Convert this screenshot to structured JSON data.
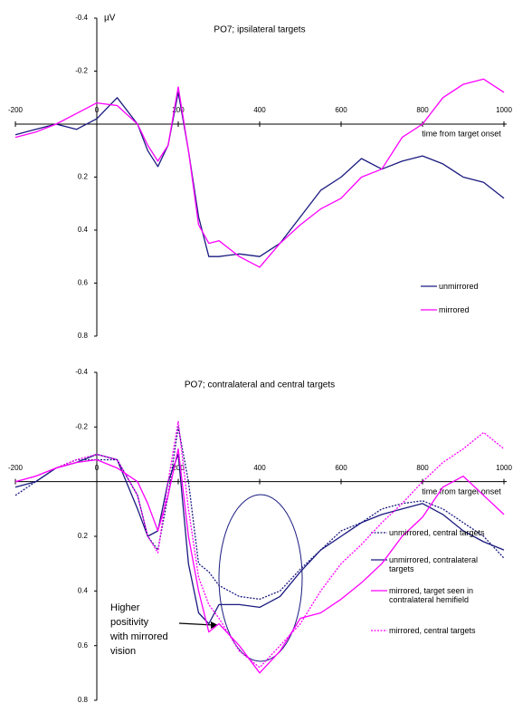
{
  "chart_data": [
    {
      "type": "line",
      "title": "PO7; ipsilateral targets",
      "y_unit": "µV",
      "x_label": "time from target onset",
      "x": [
        -200,
        -150,
        -100,
        -50,
        0,
        50,
        100,
        125,
        150,
        175,
        200,
        225,
        250,
        275,
        300,
        350,
        400,
        450,
        500,
        550,
        600,
        650,
        700,
        750,
        800,
        850,
        900,
        950,
        1000
      ],
      "series": [
        {
          "name": "unmirrored",
          "color": "#1a1a80",
          "dashed": false,
          "values": [
            0.04,
            0.02,
            0.0,
            0.02,
            -0.02,
            -0.1,
            0.0,
            0.1,
            0.16,
            0.08,
            -0.12,
            0.1,
            0.35,
            0.5,
            0.5,
            0.49,
            0.5,
            0.45,
            0.35,
            0.25,
            0.2,
            0.13,
            0.17,
            0.14,
            0.12,
            0.15,
            0.2,
            0.22,
            0.28
          ]
        },
        {
          "name": "mirrored",
          "color": "#ff00ff",
          "dashed": false,
          "values": [
            0.05,
            0.03,
            0.0,
            -0.04,
            -0.08,
            -0.07,
            0.0,
            0.08,
            0.14,
            0.08,
            -0.14,
            0.1,
            0.38,
            0.45,
            0.44,
            0.5,
            0.54,
            0.45,
            0.38,
            0.32,
            0.28,
            0.2,
            0.17,
            0.05,
            0.0,
            -0.1,
            -0.15,
            -0.17,
            -0.12
          ]
        }
      ],
      "xlim": [
        -200,
        1000
      ],
      "xticks": [
        -200,
        0,
        200,
        400,
        600,
        800,
        1000
      ],
      "ylim": [
        -0.4,
        0.8
      ],
      "yticks": [
        -0.4,
        -0.2,
        0.2,
        0.4,
        0.6,
        0.8
      ],
      "y_inverted": true
    },
    {
      "type": "line",
      "title": "PO7; contralateral and central targets",
      "x_label": "time from target onset",
      "annotation": [
        "Higher",
        "positivity",
        "with mirrored",
        "vision"
      ],
      "x": [
        -200,
        -150,
        -100,
        -50,
        0,
        50,
        100,
        125,
        150,
        175,
        200,
        225,
        250,
        275,
        300,
        350,
        400,
        450,
        500,
        550,
        600,
        650,
        700,
        750,
        800,
        850,
        900,
        950,
        1000
      ],
      "series": [
        {
          "name": "unmirrored, central targets",
          "color": "#1a1a80",
          "dashed": true,
          "values": [
            0.05,
            0.0,
            -0.05,
            -0.08,
            -0.08,
            -0.08,
            0.05,
            0.2,
            0.25,
            0.05,
            -0.2,
            0.0,
            0.3,
            0.33,
            0.38,
            0.42,
            0.43,
            0.4,
            0.32,
            0.25,
            0.18,
            0.15,
            0.1,
            0.08,
            0.07,
            0.1,
            0.15,
            0.2,
            0.28
          ]
        },
        {
          "name": "unmirrored, contralateral targets",
          "color": "#1a1a80",
          "dashed": false,
          "values": [
            0.02,
            0.0,
            -0.05,
            -0.07,
            -0.1,
            -0.08,
            0.1,
            0.2,
            0.18,
            0.0,
            -0.1,
            0.3,
            0.48,
            0.52,
            0.45,
            0.45,
            0.46,
            0.42,
            0.33,
            0.25,
            0.2,
            0.15,
            0.12,
            0.1,
            0.08,
            0.12,
            0.18,
            0.22,
            0.25
          ]
        },
        {
          "name": "mirrored, target seen in contralateral hemifield",
          "color": "#ff00ff",
          "dashed": false,
          "values": [
            0.0,
            -0.02,
            -0.05,
            -0.07,
            -0.08,
            -0.05,
            0.0,
            0.08,
            0.18,
            0.05,
            -0.12,
            0.2,
            0.4,
            0.55,
            0.52,
            0.6,
            0.7,
            0.62,
            0.5,
            0.48,
            0.43,
            0.37,
            0.3,
            0.2,
            0.13,
            0.02,
            -0.02,
            0.05,
            0.12
          ]
        },
        {
          "name": "mirrored, central targets",
          "color": "#ff00ff",
          "dashed": true,
          "values": [
            0.0,
            -0.02,
            -0.05,
            -0.08,
            -0.1,
            -0.08,
            0.05,
            0.2,
            0.26,
            0.0,
            -0.22,
            0.1,
            0.35,
            0.45,
            0.5,
            0.62,
            0.68,
            0.6,
            0.52,
            0.4,
            0.3,
            0.23,
            0.15,
            0.08,
            0.0,
            -0.07,
            -0.12,
            -0.18,
            -0.12
          ]
        }
      ],
      "xlim": [
        -200,
        1000
      ],
      "xticks": [
        -200,
        0,
        200,
        400,
        600,
        800,
        1000
      ],
      "ylim": [
        -0.4,
        0.8
      ],
      "yticks": [
        -0.4,
        -0.2,
        0.2,
        0.4,
        0.6,
        0.8
      ],
      "y_inverted": true
    }
  ]
}
